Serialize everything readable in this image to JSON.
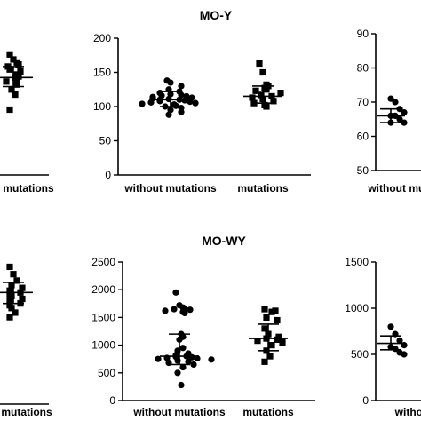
{
  "chart_data": [
    {
      "type": "scatter",
      "title": "",
      "categories": [
        "",
        "mutations"
      ],
      "yticks": [],
      "series": [
        {
          "category": "mutations",
          "marker": "square",
          "values": [
            120,
            115,
            112,
            110,
            108,
            105,
            103,
            100,
            98,
            97,
            95,
            93,
            90,
            85,
            80,
            65
          ],
          "mean": 97,
          "sd_low": 88,
          "sd_high": 108
        }
      ]
    },
    {
      "type": "scatter",
      "title": "MO-Y",
      "categories": [
        "without mutations",
        "mutations"
      ],
      "ylim": [
        0,
        200
      ],
      "yticks": [
        "0",
        "50",
        "100",
        "150",
        "200"
      ],
      "series": [
        {
          "category": "without mutations",
          "marker": "circle",
          "values": [
            138,
            135,
            130,
            125,
            122,
            120,
            118,
            117,
            116,
            115,
            114,
            113,
            112,
            111,
            110,
            110,
            109,
            108,
            107,
            106,
            105,
            104,
            103,
            101,
            100,
            98,
            95,
            92,
            88
          ],
          "mean": 110,
          "sd_low": 100,
          "sd_high": 122
        },
        {
          "category": "mutations",
          "marker": "square",
          "values": [
            163,
            150,
            132,
            130,
            127,
            125,
            123,
            120,
            117,
            115,
            113,
            111,
            108,
            105,
            102,
            100
          ],
          "mean": 115,
          "sd_low": 105,
          "sd_high": 130
        }
      ]
    },
    {
      "type": "scatter",
      "title": "",
      "categories": [
        "without mutations"
      ],
      "ylim": [
        50,
        90
      ],
      "yticks": [
        "50",
        "60",
        "70",
        "80",
        "90"
      ],
      "series": [
        {
          "category": "without mutations",
          "marker": "circle",
          "values": [
            71,
            70,
            68,
            67,
            66,
            66,
            65,
            64,
            64
          ],
          "mean": 66,
          "sd_low": 64,
          "sd_high": 68
        }
      ]
    },
    {
      "type": "scatter",
      "title": "",
      "categories": [
        "",
        "mutations"
      ],
      "yticks": [],
      "series": [
        {
          "category": "mutations",
          "marker": "square",
          "values": [
            1500,
            1420,
            1350,
            1300,
            1270,
            1240,
            1220,
            1200,
            1180,
            1150,
            1120,
            1100,
            1080,
            1050,
            1000,
            950
          ],
          "mean": 1220,
          "sd_low": 1100,
          "sd_high": 1330
        }
      ]
    },
    {
      "type": "scatter",
      "title": "MO-WY",
      "categories": [
        "without mutations",
        "mutations"
      ],
      "ylim": [
        0,
        2500
      ],
      "yticks": [
        "0",
        "500",
        "1000",
        "1500",
        "2000",
        "2500"
      ],
      "series": [
        {
          "category": "without mutations",
          "marker": "circle",
          "values": [
            1950,
            1720,
            1680,
            1660,
            1650,
            1640,
            1620,
            1600,
            1580,
            1200,
            1150,
            1100,
            950,
            900,
            850,
            820,
            800,
            790,
            780,
            770,
            760,
            750,
            740,
            720,
            700,
            680,
            650,
            600,
            500,
            280
          ],
          "mean": 800,
          "sd_low": 650,
          "sd_high": 1200
        },
        {
          "category": "mutations",
          "marker": "square",
          "values": [
            1650,
            1620,
            1600,
            1500,
            1450,
            1300,
            1200,
            1150,
            1120,
            1100,
            1080,
            1050,
            1000,
            900,
            800,
            700
          ],
          "mean": 1120,
          "sd_low": 900,
          "sd_high": 1380
        }
      ]
    },
    {
      "type": "scatter",
      "title": "",
      "categories": [
        "without"
      ],
      "ylim": [
        0,
        1500
      ],
      "yticks": [
        "0",
        "500",
        "1000",
        "1500"
      ],
      "series": [
        {
          "category": "without",
          "marker": "circle",
          "values": [
            800,
            720,
            650,
            600,
            580,
            560,
            520,
            500
          ],
          "mean": 620,
          "sd_low": 550,
          "sd_high": 700
        }
      ]
    }
  ]
}
